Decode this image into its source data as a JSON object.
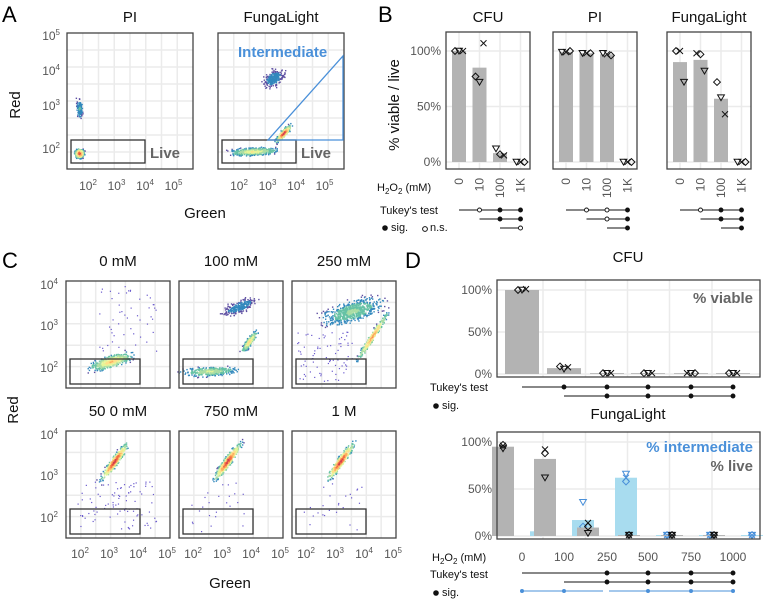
{
  "panels": {
    "A": "A",
    "B": "B",
    "C": "C",
    "D": "D"
  },
  "colors": {
    "bar": "#b3b3b3",
    "blue": "#4a90d9",
    "lightblue": "#a8dcef",
    "grid": "#ebebeb",
    "frame": "#444444"
  },
  "panelA": {
    "titles": [
      "PI",
      "FungaLight"
    ],
    "ylabel": "Red",
    "xlabel": "Green",
    "yticks": [
      {
        "b": "10",
        "e": "5"
      },
      {
        "b": "10",
        "e": "4"
      },
      {
        "b": "10",
        "e": "3"
      },
      {
        "b": "10",
        "e": "2"
      }
    ],
    "xticks": [
      {
        "b": "10",
        "e": "2"
      },
      {
        "b": "10",
        "e": "3"
      },
      {
        "b": "10",
        "e": "4"
      },
      {
        "b": "10",
        "e": "5"
      }
    ],
    "live_label": "Live",
    "intermediate_label": "Intermediate"
  },
  "panelC": {
    "titles": [
      "0 mM",
      "100 mM",
      "250 mM",
      "50 0 mM",
      "750 mM",
      "1 M"
    ],
    "ylabel": "Red",
    "xlabel": "Green",
    "yticks": [
      {
        "b": "10",
        "e": "4"
      },
      {
        "b": "10",
        "e": "3"
      },
      {
        "b": "10",
        "e": "2"
      }
    ],
    "xticks": [
      {
        "b": "10",
        "e": "2"
      },
      {
        "b": "10",
        "e": "3"
      },
      {
        "b": "10",
        "e": "4"
      },
      {
        "b": "10",
        "e": "5"
      }
    ]
  },
  "labels": {
    "h2o2_prefix": "H",
    "h2o2_sub1": "2",
    "h2o2_mid": "O",
    "h2o2_sub2": "2",
    "h2o2_suffix": " (mM)",
    "tukey": "Tukey's test",
    "sig": "sig.",
    "ns": "n.s.",
    "ylabel_B": "% viable / live",
    "pct_viable": "% viable",
    "pct_intermediate": "% intermediate",
    "pct_live": "% live"
  },
  "chart_data": [
    {
      "type": "bar",
      "title": "CFU",
      "panel": "B",
      "categories": [
        "0",
        "10",
        "100",
        "1K"
      ],
      "ylim": [
        0,
        100
      ],
      "yticks": [
        "100%",
        "50%",
        "0%"
      ],
      "ytick_values": [
        100,
        50,
        0
      ],
      "values": [
        100,
        85,
        8,
        0
      ],
      "points": [
        [
          [
            100,
            "d"
          ],
          [
            100,
            "t"
          ],
          [
            100,
            "x"
          ]
        ],
        [
          [
            77,
            "d"
          ],
          [
            72,
            "t"
          ],
          [
            107,
            "x"
          ]
        ],
        [
          [
            12,
            "t"
          ],
          [
            7,
            "d"
          ],
          [
            6,
            "x"
          ]
        ],
        [
          [
            0,
            "t"
          ],
          [
            0,
            "x"
          ],
          [
            0,
            "d"
          ]
        ]
      ],
      "tukey": [
        [
          null,
          "o",
          "f",
          "f"
        ],
        [
          null,
          null,
          "f",
          "f"
        ],
        [
          null,
          null,
          null,
          "o"
        ]
      ]
    },
    {
      "type": "bar",
      "title": "PI",
      "panel": "B",
      "categories": [
        "0",
        "10",
        "100",
        "1K"
      ],
      "ylim": [
        0,
        100
      ],
      "values": [
        99,
        98,
        97,
        0
      ],
      "points": [
        [
          [
            99,
            "t"
          ],
          [
            99,
            "x"
          ],
          [
            100,
            "d"
          ]
        ],
        [
          [
            98,
            "t"
          ],
          [
            98,
            "x"
          ],
          [
            98,
            "d"
          ]
        ],
        [
          [
            98,
            "t"
          ],
          [
            97,
            "x"
          ],
          [
            96,
            "d"
          ]
        ],
        [
          [
            0,
            "t"
          ],
          [
            0,
            "x"
          ],
          [
            0,
            "d"
          ]
        ]
      ],
      "tukey": [
        [
          null,
          "o",
          "o",
          "f"
        ],
        [
          null,
          null,
          "o",
          "f"
        ],
        [
          null,
          null,
          null,
          "f"
        ]
      ]
    },
    {
      "type": "bar",
      "title": "FungaLight",
      "panel": "B",
      "categories": [
        "0",
        "10",
        "100",
        "1K"
      ],
      "ylim": [
        0,
        100
      ],
      "values": [
        90,
        92,
        57,
        0
      ],
      "points": [
        [
          [
            100,
            "d"
          ],
          [
            100,
            "x"
          ],
          [
            72,
            "t"
          ]
        ],
        [
          [
            98,
            "x"
          ],
          [
            97,
            "d"
          ],
          [
            82,
            "t"
          ]
        ],
        [
          [
            72,
            "d"
          ],
          [
            58,
            "t"
          ],
          [
            43,
            "x"
          ]
        ],
        [
          [
            0,
            "t"
          ],
          [
            0,
            "x"
          ],
          [
            0,
            "d"
          ]
        ]
      ],
      "tukey": [
        [
          null,
          "o",
          "f",
          "f"
        ],
        [
          null,
          null,
          "f",
          "f"
        ],
        [
          null,
          null,
          null,
          "f"
        ]
      ]
    },
    {
      "type": "bar",
      "title": "CFU",
      "panel": "D",
      "categories": [
        "0",
        "100",
        "250",
        "500",
        "750",
        "1000"
      ],
      "ylim": [
        0,
        100
      ],
      "yticks": [
        "100%",
        "50%",
        "0%"
      ],
      "ytick_values": [
        100,
        50,
        0
      ],
      "values": [
        100,
        7,
        1,
        1,
        1,
        1
      ],
      "points": [
        [
          [
            100,
            "d"
          ],
          [
            100,
            "t"
          ],
          [
            101,
            "x"
          ]
        ],
        [
          [
            9,
            "d"
          ],
          [
            6,
            "t"
          ],
          [
            8,
            "x"
          ]
        ],
        [
          [
            1,
            "d"
          ],
          [
            1,
            "t"
          ],
          [
            1,
            "x"
          ]
        ],
        [
          [
            1,
            "d"
          ],
          [
            1,
            "t"
          ],
          [
            1,
            "x"
          ]
        ],
        [
          [
            1,
            "x"
          ],
          [
            1,
            "t"
          ],
          [
            1,
            "d"
          ]
        ],
        [
          [
            1,
            "d"
          ],
          [
            1,
            "t"
          ],
          [
            1,
            "x"
          ]
        ]
      ],
      "tukey": [
        [
          null,
          "f",
          "f",
          "f",
          "f",
          "f"
        ],
        [
          null,
          null,
          "f",
          "f",
          "f",
          "f"
        ]
      ]
    },
    {
      "type": "bar",
      "title": "FungaLight",
      "panel": "D",
      "categories": [
        "0",
        "100",
        "250",
        "500",
        "750",
        "1000"
      ],
      "ylim": [
        0,
        100
      ],
      "series": [
        {
          "name": "% live",
          "values": [
            95,
            82,
            9,
            1,
            1,
            1
          ],
          "points": [
            [
              [
                97,
                "d"
              ],
              [
                96,
                "x"
              ],
              [
                93,
                "t"
              ]
            ],
            [
              [
                92,
                "x"
              ],
              [
                88,
                "d"
              ],
              [
                62,
                "t"
              ]
            ],
            [
              [
                14,
                "x"
              ],
              [
                10,
                "d"
              ],
              [
                3,
                "t"
              ]
            ],
            [
              [
                1,
                "d"
              ],
              [
                1,
                "t"
              ],
              [
                1,
                "x"
              ]
            ],
            [
              [
                1,
                "d"
              ],
              [
                1,
                "t"
              ],
              [
                1,
                "x"
              ]
            ],
            [
              [
                1,
                "d"
              ],
              [
                1,
                "t"
              ],
              [
                1,
                "x"
              ]
            ]
          ]
        },
        {
          "name": "% intermediate",
          "values": [
            5,
            17,
            62,
            1,
            1,
            1
          ],
          "points": [
            [
              [
                8,
                "t"
              ],
              [
                4,
                "d"
              ],
              [
                6,
                "x"
              ]
            ],
            [
              [
                36,
                "t"
              ],
              [
                10,
                "d"
              ],
              [
                5,
                "x"
              ]
            ],
            [
              [
                66,
                "t"
              ],
              [
                62,
                "x"
              ],
              [
                58,
                "d"
              ]
            ],
            [
              [
                1,
                "d"
              ],
              [
                1,
                "t"
              ],
              [
                1,
                "x"
              ]
            ],
            [
              [
                1,
                "d"
              ],
              [
                1,
                "t"
              ],
              [
                1,
                "x"
              ]
            ],
            [
              [
                1,
                "d"
              ],
              [
                1,
                "t"
              ],
              [
                1,
                "x"
              ]
            ]
          ]
        }
      ],
      "tukey": [
        [
          null,
          null,
          "f",
          "f",
          "f",
          "f"
        ],
        [
          null,
          null,
          "f",
          "f",
          "f",
          "f"
        ]
      ],
      "tukey_intermediate": [
        [
          "f",
          "f"
        ],
        [
          "f",
          "f",
          "f",
          "f"
        ]
      ]
    }
  ]
}
